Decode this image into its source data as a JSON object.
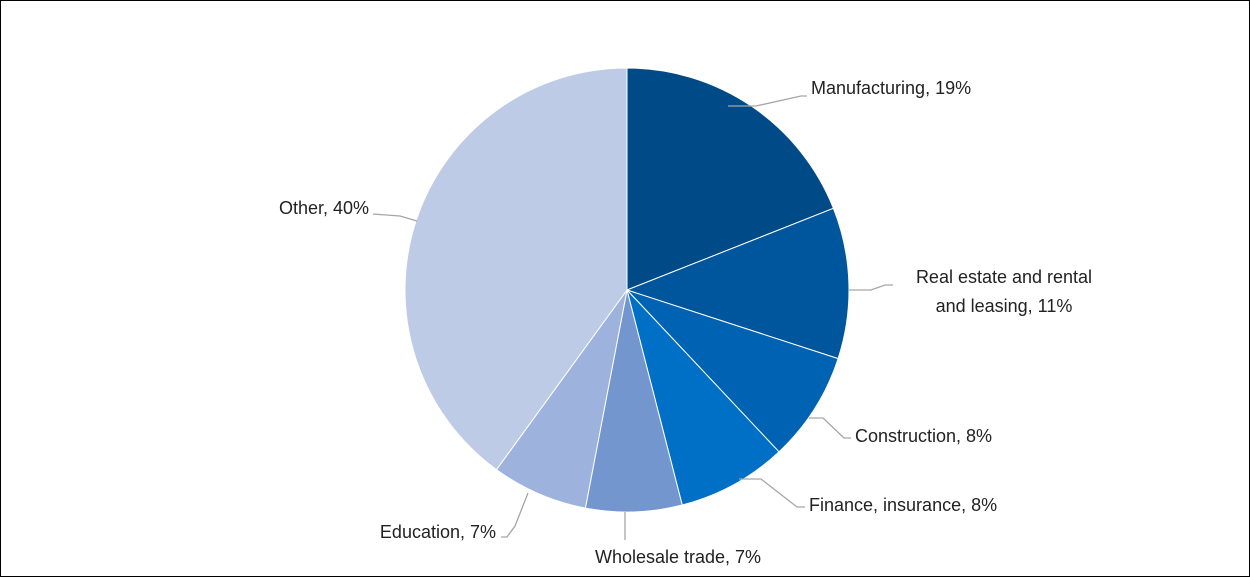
{
  "chart_data": {
    "type": "pie",
    "title": "",
    "start_angle_deg": 0,
    "direction": "clockwise",
    "legend": "none",
    "slices": [
      {
        "label": "Manufacturing",
        "value": 19,
        "color": "#004A88",
        "data_label": "Manufacturing, 19%"
      },
      {
        "label": "Real estate and rental and leasing",
        "value": 11,
        "color": "#00569D",
        "data_label": [
          "Real estate and rental",
          "and leasing, 11%"
        ]
      },
      {
        "label": "Construction",
        "value": 8,
        "color": "#0062B2",
        "data_label": "Construction, 8%"
      },
      {
        "label": "Finance, insurance",
        "value": 8,
        "color": "#0070C6",
        "data_label": "Finance, insurance, 8%"
      },
      {
        "label": "Wholesale trade",
        "value": 7,
        "color": "#7396CF",
        "data_label": "Wholesale trade, 7%"
      },
      {
        "label": "Education",
        "value": 7,
        "color": "#9DB2DC",
        "data_label": "Education, 7%"
      },
      {
        "label": "Other",
        "value": 40,
        "color": "#BDCBE6",
        "data_label": "Other, 40%"
      }
    ]
  }
}
